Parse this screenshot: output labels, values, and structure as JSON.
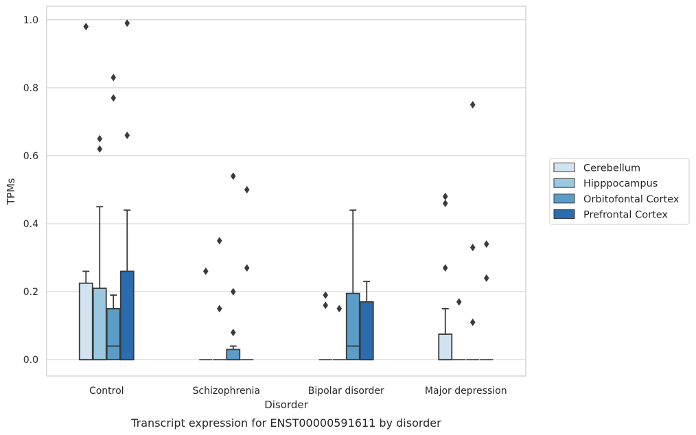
{
  "caption": "Transcript expression for ENST00000591611 by disorder",
  "chart_data": {
    "type": "box",
    "xlabel": "Disorder",
    "ylabel": "TPMs",
    "ylim": [
      -0.048,
      1.04
    ],
    "yticks": [
      0.0,
      0.2,
      0.4,
      0.6,
      0.8,
      1.0
    ],
    "ytick_labels": [
      "0.0",
      "0.2",
      "0.4",
      "0.6",
      "0.8",
      "1.0"
    ],
    "grid": "horizontal",
    "legend_position": "right",
    "categories": [
      "Control",
      "Schizophrenia",
      "Bipolar disorder",
      "Major depression"
    ],
    "series": [
      {
        "name": "Cerebellum",
        "color": "#d1e2f1",
        "boxes": [
          {
            "q1": 0.0,
            "median": 0.0,
            "q3": 0.225,
            "whislo": 0.0,
            "whishi": 0.26,
            "fliers": [
              0.98
            ]
          },
          {
            "q1": 0.0,
            "median": 0.0,
            "q3": 0.0,
            "whislo": 0.0,
            "whishi": 0.0,
            "fliers": [
              0.26
            ]
          },
          {
            "q1": 0.0,
            "median": 0.0,
            "q3": 0.0,
            "whislo": 0.0,
            "whishi": 0.0,
            "fliers": [
              0.19,
              0.16
            ]
          },
          {
            "q1": 0.0,
            "median": 0.0,
            "q3": 0.075,
            "whislo": 0.0,
            "whishi": 0.15,
            "fliers": [
              0.48,
              0.46,
              0.27
            ]
          }
        ]
      },
      {
        "name": "Hipppocampus",
        "color": "#9ac8e0",
        "boxes": [
          {
            "q1": 0.0,
            "median": 0.0,
            "q3": 0.21,
            "whislo": 0.0,
            "whishi": 0.45,
            "fliers": [
              0.65,
              0.62
            ]
          },
          {
            "q1": 0.0,
            "median": 0.0,
            "q3": 0.0,
            "whislo": 0.0,
            "whishi": 0.0,
            "fliers": [
              0.35,
              0.15
            ]
          },
          {
            "q1": 0.0,
            "median": 0.0,
            "q3": 0.0,
            "whislo": 0.0,
            "whishi": 0.0,
            "fliers": [
              0.15
            ]
          },
          {
            "q1": 0.0,
            "median": 0.0,
            "q3": 0.0,
            "whislo": 0.0,
            "whishi": 0.0,
            "fliers": [
              0.17
            ]
          }
        ]
      },
      {
        "name": "Orbitofontal Cortex",
        "color": "#5b9dc9",
        "boxes": [
          {
            "q1": 0.0,
            "median": 0.04,
            "q3": 0.15,
            "whislo": 0.0,
            "whishi": 0.19,
            "fliers": [
              0.83,
              0.77
            ]
          },
          {
            "q1": 0.0,
            "median": 0.0,
            "q3": 0.03,
            "whislo": 0.0,
            "whishi": 0.04,
            "fliers": [
              0.54,
              0.2,
              0.08
            ]
          },
          {
            "q1": 0.0,
            "median": 0.04,
            "q3": 0.195,
            "whislo": 0.0,
            "whishi": 0.44,
            "fliers": []
          },
          {
            "q1": 0.0,
            "median": 0.0,
            "q3": 0.0,
            "whislo": 0.0,
            "whishi": 0.0,
            "fliers": [
              0.75,
              0.33,
              0.11
            ]
          }
        ]
      },
      {
        "name": "Prefrontal Cortex",
        "color": "#2a6cad",
        "boxes": [
          {
            "q1": 0.0,
            "median": 0.0,
            "q3": 0.26,
            "whislo": 0.0,
            "whishi": 0.44,
            "fliers": [
              0.99,
              0.66
            ]
          },
          {
            "q1": 0.0,
            "median": 0.0,
            "q3": 0.0,
            "whislo": 0.0,
            "whishi": 0.0,
            "fliers": [
              0.5,
              0.27
            ]
          },
          {
            "q1": 0.0,
            "median": 0.0,
            "q3": 0.17,
            "whislo": 0.0,
            "whishi": 0.23,
            "fliers": []
          },
          {
            "q1": 0.0,
            "median": 0.0,
            "q3": 0.0,
            "whislo": 0.0,
            "whishi": 0.0,
            "fliers": [
              0.34,
              0.24
            ]
          }
        ]
      }
    ]
  }
}
